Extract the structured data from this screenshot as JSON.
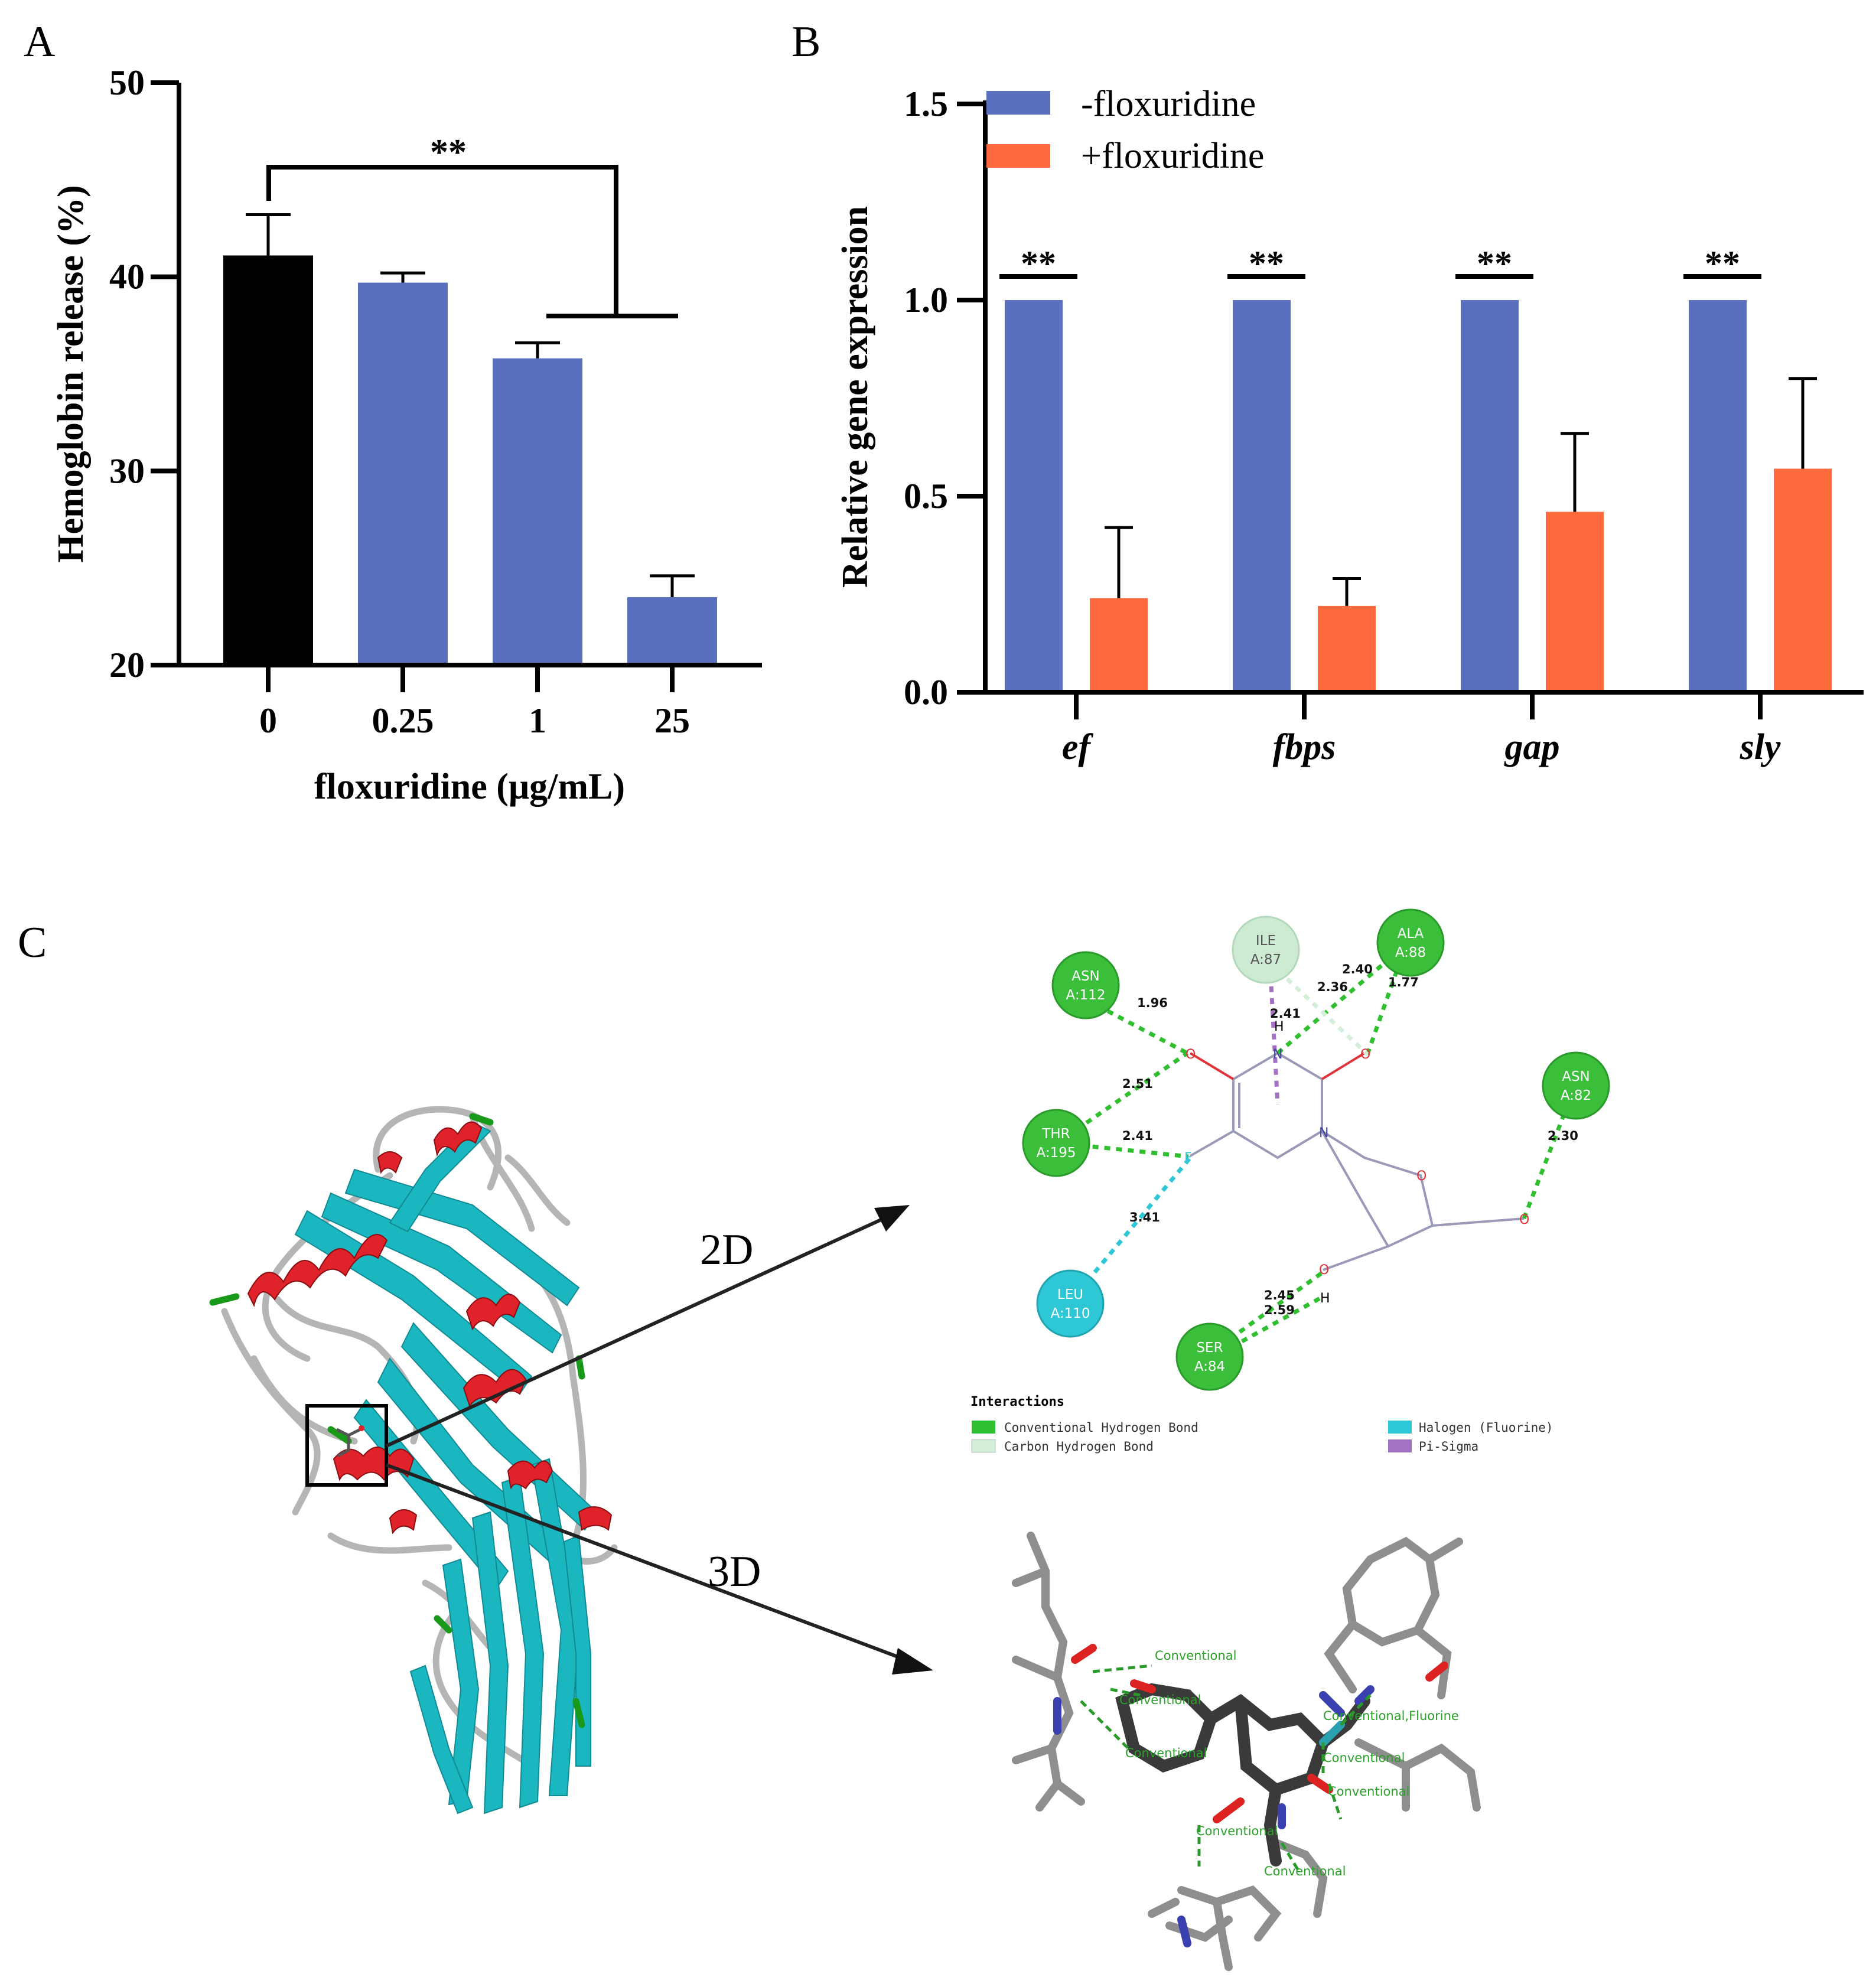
{
  "panels": {
    "A": "A",
    "B": "B",
    "C": "C"
  },
  "chart_data": [
    {
      "panel": "A",
      "type": "bar",
      "categories": [
        "0",
        "0.25",
        "1",
        "25"
      ],
      "values": [
        41.1,
        39.7,
        35.8,
        23.5
      ],
      "errors": [
        2.1,
        0.5,
        0.8,
        1.1
      ],
      "bar_colors": [
        "#000000",
        "#5a6fbd",
        "#5a6fbd",
        "#5a6fbd"
      ],
      "xlabel": "floxuridine (μg/mL)",
      "ylabel": "Hemoglobin release (%)",
      "ylim": [
        20,
        50
      ],
      "yticks": [
        "20",
        "30",
        "40",
        "50"
      ],
      "significance": "**"
    },
    {
      "panel": "B",
      "type": "bar",
      "categories": [
        "ef",
        "fbps",
        "gap",
        "sly"
      ],
      "series": [
        {
          "name": "-floxuridine",
          "color": "#5a6fbd",
          "values": [
            1.0,
            1.0,
            1.0,
            1.0
          ],
          "errors": [
            0,
            0,
            0,
            0
          ]
        },
        {
          "name": "+floxuridine",
          "color": "#ff6a3d",
          "values": [
            0.24,
            0.22,
            0.46,
            0.57
          ],
          "errors": [
            0.18,
            0.07,
            0.2,
            0.23
          ]
        }
      ],
      "ylabel": "Relative gene expression",
      "ylim": [
        0,
        1.5
      ],
      "yticks": [
        "0.0",
        "0.5",
        "1.0",
        "1.5"
      ],
      "significance": [
        "**",
        "**",
        "**",
        "**"
      ],
      "legend": "top-left"
    }
  ],
  "panel_c": {
    "arrow_labels": [
      "2D",
      "3D"
    ],
    "residues": [
      {
        "name": "ASN",
        "id": "A:112",
        "color": "#3bbf3b"
      },
      {
        "name": "ILE",
        "id": "A:87",
        "color": "#cdebd3"
      },
      {
        "name": "ALA",
        "id": "A:88",
        "color": "#3bbf3b"
      },
      {
        "name": "ASN",
        "id": "A:82",
        "color": "#3bbf3b"
      },
      {
        "name": "THR",
        "id": "A:195",
        "color": "#3bbf3b"
      },
      {
        "name": "LEU",
        "id": "A:110",
        "color": "#2ec7d6"
      },
      {
        "name": "SER",
        "id": "A:84",
        "color": "#3bbf3b"
      }
    ],
    "distances": [
      "1.96",
      "2.51",
      "2.41",
      "3.41",
      "2.40",
      "2.36",
      "2.41",
      "1.77",
      "2.30",
      "2.45",
      "2.59"
    ],
    "atoms": [
      "O",
      "O",
      "N",
      "N",
      "F",
      "O",
      "O",
      "O",
      "H",
      "H"
    ],
    "legend_title": "Interactions",
    "legend": [
      {
        "label": "Conventional Hydrogen Bond",
        "color": "#2fbf2f"
      },
      {
        "label": "Carbon Hydrogen Bond",
        "color": "#d4efd8"
      },
      {
        "label": "Halogen (Fluorine)",
        "color": "#2ec7d6"
      },
      {
        "label": "Pi-Sigma",
        "color": "#a472c2"
      }
    ],
    "labels_3d": [
      "Conventional",
      "Conventional",
      "Conventional",
      "Conventional,Fluorine",
      "Conventional",
      "Conventional",
      "Conventional",
      "Conventional"
    ]
  }
}
